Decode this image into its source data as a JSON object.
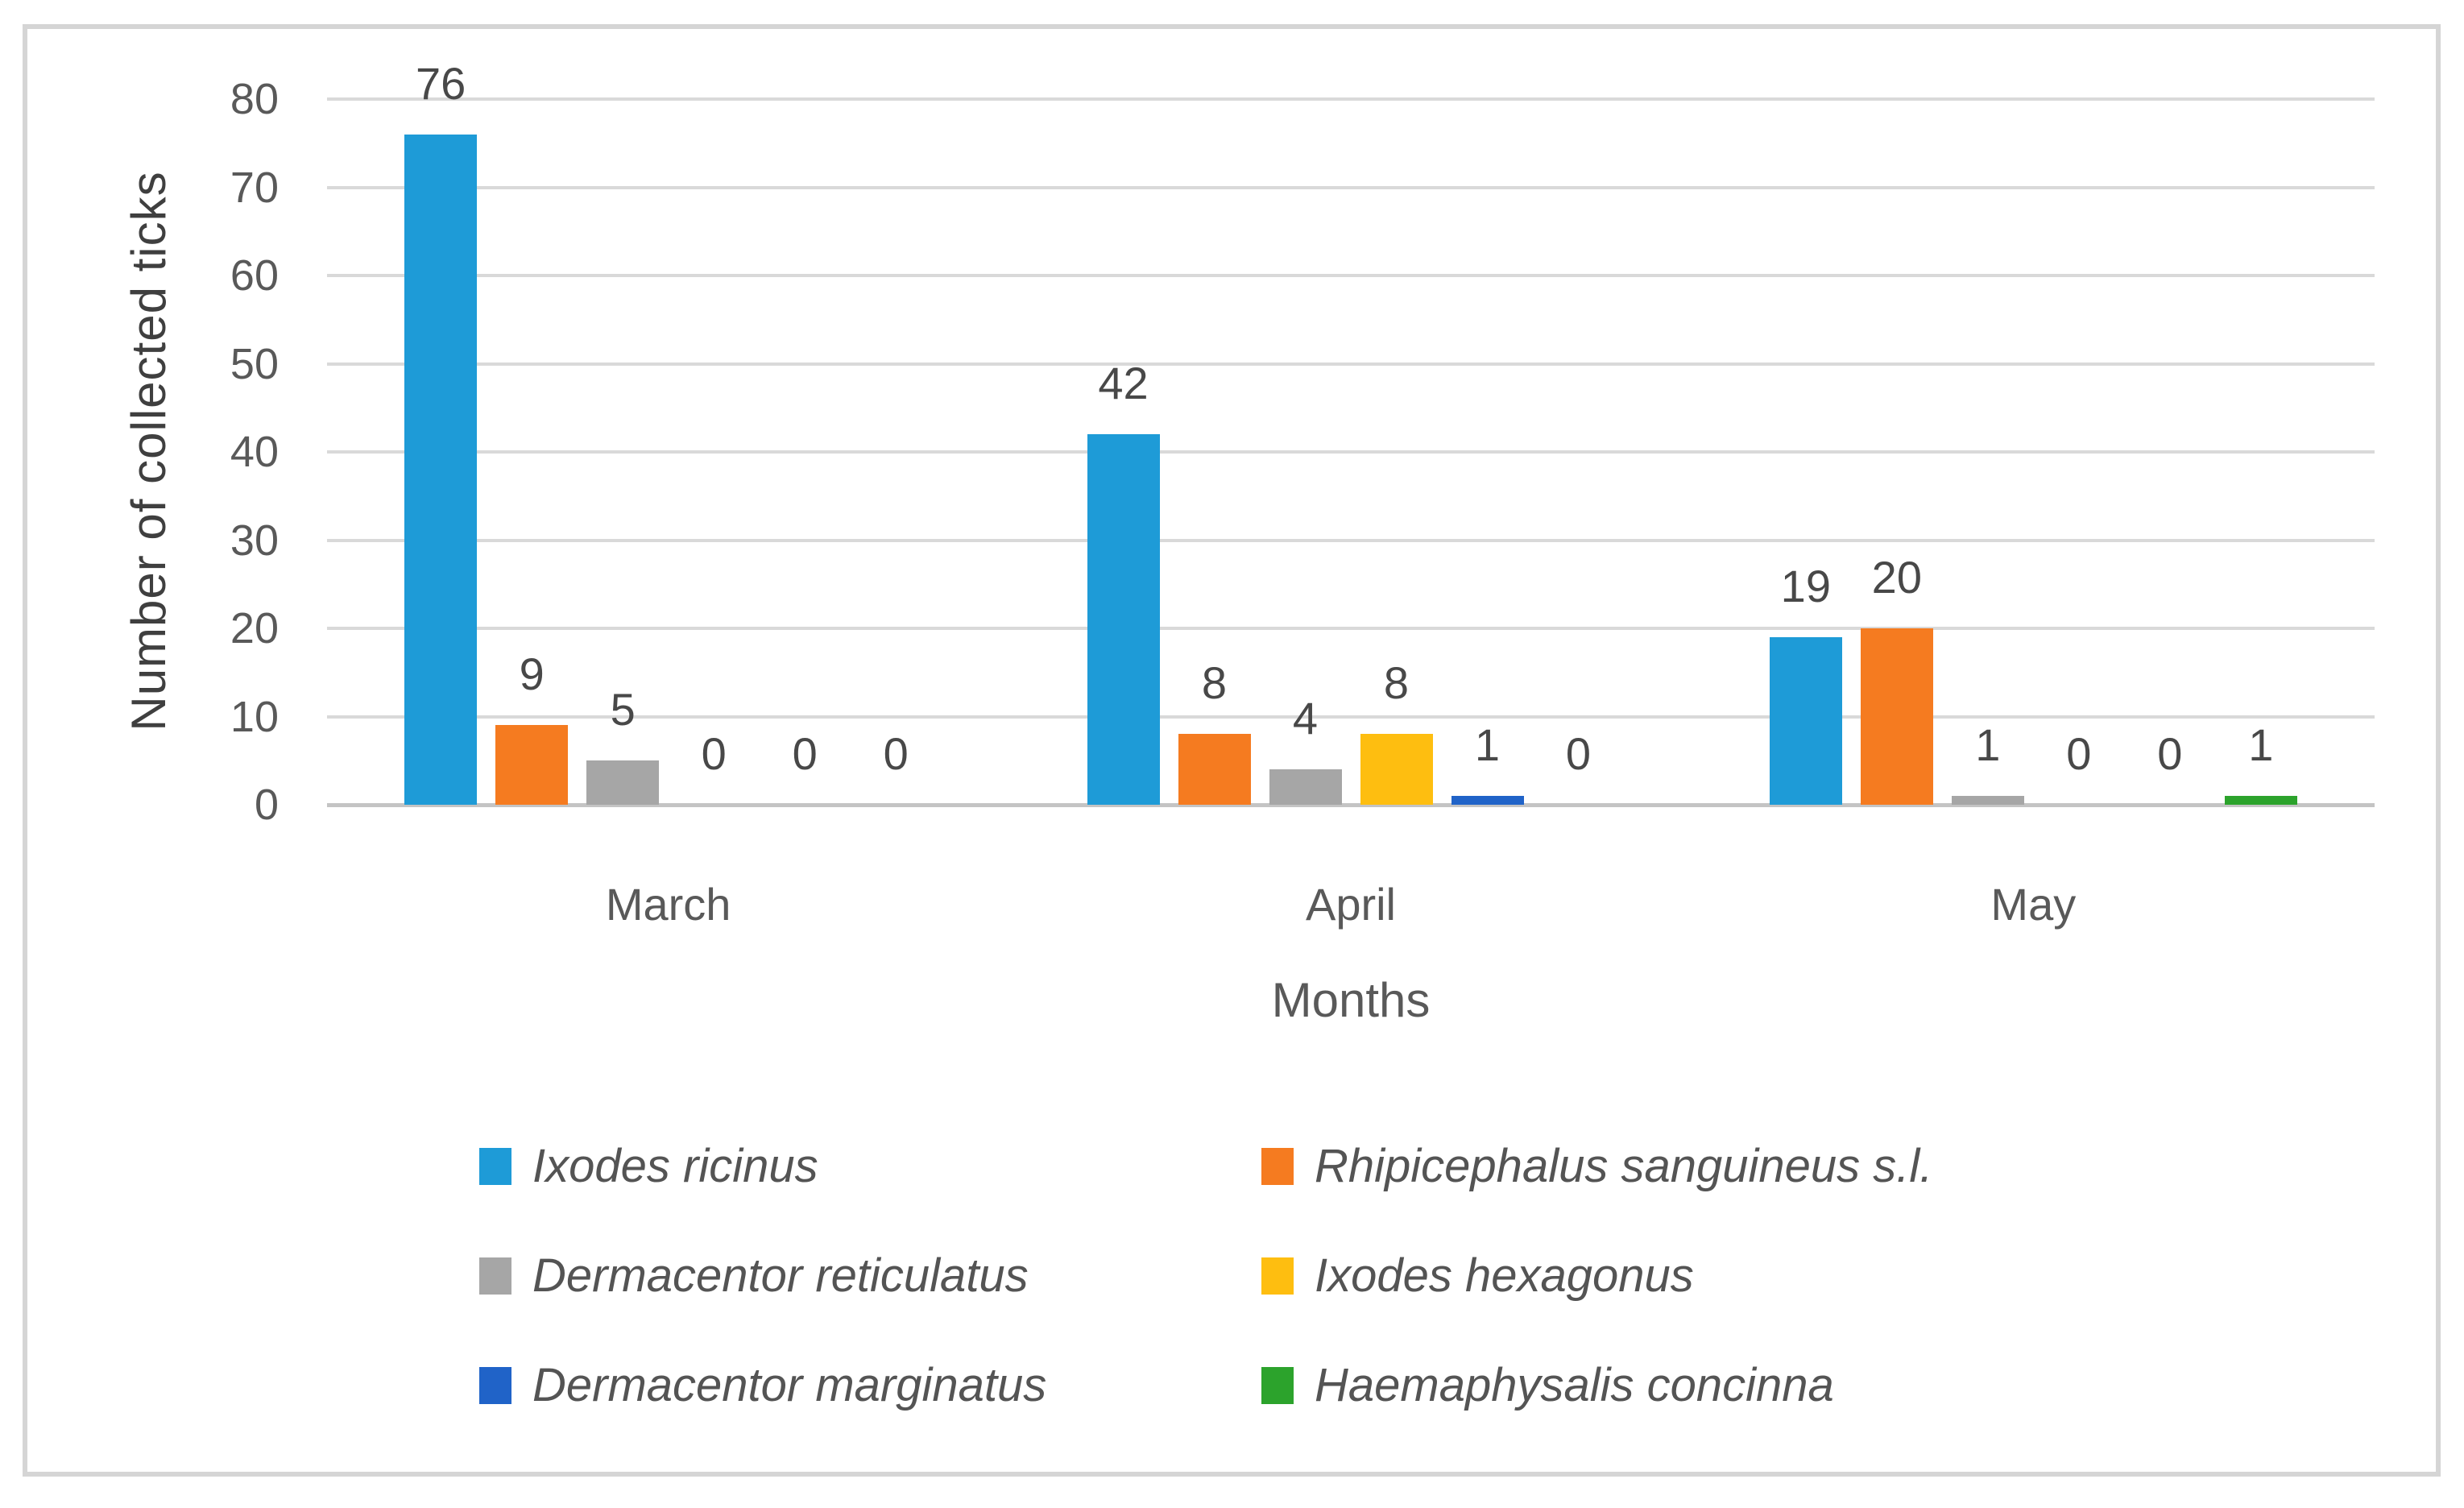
{
  "chart_data": {
    "type": "bar",
    "categories": [
      "March",
      "April",
      "May"
    ],
    "series": [
      {
        "name": "Ixodes ricinus",
        "color": "#1e9bd7",
        "values": [
          76,
          42,
          19
        ]
      },
      {
        "name": "Rhipicephalus sanguineus s.l.",
        "color": "#f57b20",
        "values": [
          9,
          8,
          20
        ]
      },
      {
        "name": "Dermacentor reticulatus",
        "color": "#a6a6a6",
        "values": [
          5,
          4,
          1
        ]
      },
      {
        "name": "Ixodes hexagonus",
        "color": "#febe10",
        "values": [
          0,
          8,
          0
        ]
      },
      {
        "name": "Dermacentor marginatus",
        "color": "#2063c8",
        "values": [
          0,
          1,
          0
        ]
      },
      {
        "name": "Haemaphysalis concinna",
        "color": "#2ca32c",
        "values": [
          0,
          0,
          1
        ]
      }
    ],
    "xlabel": "Months",
    "ylabel": "Number of collected ticks",
    "ylim": [
      0,
      80
    ],
    "yticks": [
      0,
      10,
      20,
      30,
      40,
      50,
      60,
      70,
      80
    ],
    "grid": true,
    "data_labels": true,
    "legend_position": "bottom"
  },
  "colors": {
    "gridline": "#d9d9d9",
    "axis_line": "#c4c4c4",
    "tick_text": "#595959",
    "data_label_text": "#484848",
    "axis_title_text": "#3f3f3f",
    "legend_text": "#545454",
    "figure_border": "#d5d5d5"
  }
}
